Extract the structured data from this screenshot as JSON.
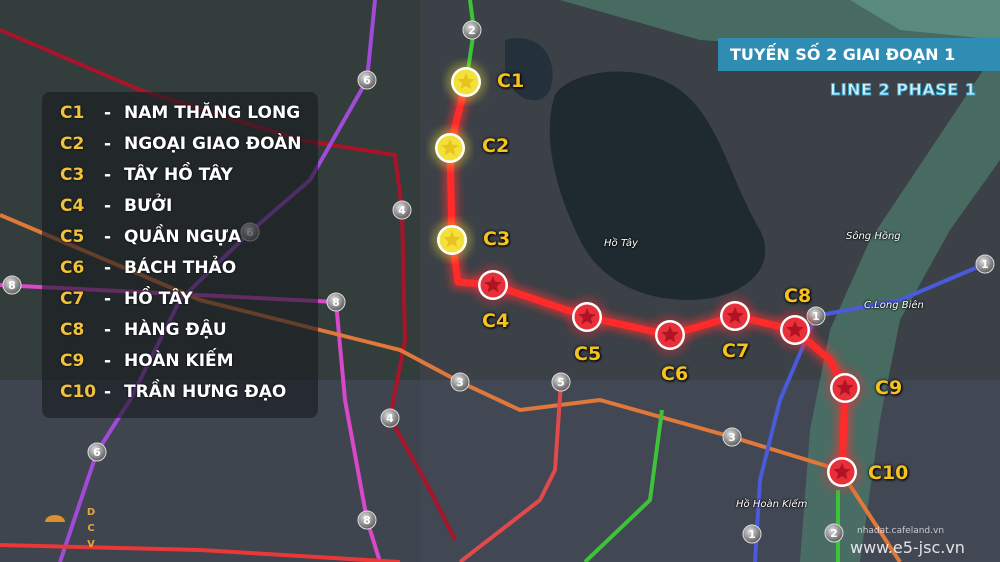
{
  "title": "TUYẾN SỐ 2 GIAI ĐOẠN 1",
  "subtitle": "LINE 2 PHASE 1",
  "legend": [
    {
      "code": "C1",
      "name": "NAM THĂNG LONG"
    },
    {
      "code": "C2",
      "name": "NGOẠI GIAO ĐOÀN"
    },
    {
      "code": "C3",
      "name": "TÂY HỒ TÂY"
    },
    {
      "code": "C4",
      "name": "BƯỞI"
    },
    {
      "code": "C5",
      "name": "QUẦN NGỰA"
    },
    {
      "code": "C6",
      "name": "BÁCH THẢO"
    },
    {
      "code": "C7",
      "name": "HỒ TÂY"
    },
    {
      "code": "C8",
      "name": "HÀNG ĐẬU"
    },
    {
      "code": "C9",
      "name": "HOÀN KIẾM"
    },
    {
      "code": "C10",
      "name": "TRẦN HƯNG ĐẠO"
    }
  ],
  "stations": [
    {
      "code": "C1",
      "status": "planned",
      "color": "#f3e03a"
    },
    {
      "code": "C2",
      "status": "planned",
      "color": "#f3e03a"
    },
    {
      "code": "C3",
      "status": "planned",
      "color": "#f3e03a"
    },
    {
      "code": "C4",
      "status": "phase1",
      "color": "#e8303a"
    },
    {
      "code": "C5",
      "status": "phase1",
      "color": "#e8303a"
    },
    {
      "code": "C6",
      "status": "phase1",
      "color": "#e8303a"
    },
    {
      "code": "C7",
      "status": "phase1",
      "color": "#e8303a"
    },
    {
      "code": "C8",
      "status": "phase1",
      "color": "#e8303a"
    },
    {
      "code": "C9",
      "status": "phase1",
      "color": "#e8303a"
    },
    {
      "code": "C10",
      "status": "phase1",
      "color": "#e8303a"
    }
  ],
  "map_labels": {
    "lake": "Hồ Tây",
    "river": "Sông Hồng",
    "bridge": "C.Long Biên",
    "hoan_kiem": "Hồ Hoàn Kiếm"
  },
  "line_colors": {
    "line1": "#4a5ad8",
    "line2": "#ff2a2a",
    "line2_ext": "#3ec23a",
    "line3": "#e0783a",
    "line4": "#a8142a",
    "line5": "#e04a4a",
    "line6": "#a04ad8",
    "line8": "#d848c8"
  },
  "line_badges": [
    "2",
    "6",
    "4",
    "6",
    "8",
    "8",
    "3",
    "5",
    "4",
    "3",
    "6",
    "8",
    "1",
    "1",
    "1",
    "2"
  ],
  "compass_letters": [
    "D",
    "C",
    "V"
  ],
  "watermark": "www.e5-jsc.vn",
  "watermark_small": "nhadat.cafeland.vn"
}
